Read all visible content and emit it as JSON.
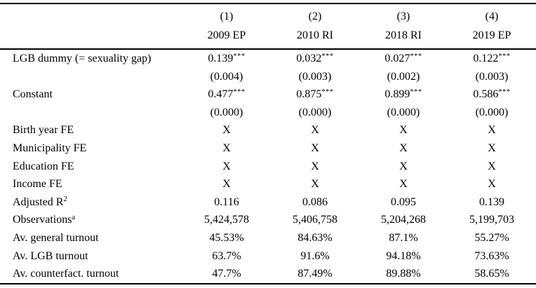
{
  "table": {
    "kind": "regression-results-table",
    "colors": {
      "text": "#000000",
      "background": "#ffffff",
      "rule": "#000000"
    },
    "columns": [
      {
        "num": "(1)",
        "label": "2009 EP"
      },
      {
        "num": "(2)",
        "label": "2010 RI"
      },
      {
        "num": "(3)",
        "label": "2018 RI"
      },
      {
        "num": "(4)",
        "label": "2019 EP"
      }
    ],
    "rows": [
      {
        "label": "LGB dummy (= sexuality gap)",
        "label_sup": "",
        "cells": [
          {
            "v": "0.139",
            "s": "***"
          },
          {
            "v": "0.032",
            "s": "***"
          },
          {
            "v": "0.027",
            "s": "***"
          },
          {
            "v": "0.122",
            "s": "***"
          }
        ]
      },
      {
        "label": "",
        "label_sup": "",
        "cells": [
          {
            "v": "(0.004)",
            "s": ""
          },
          {
            "v": "(0.003)",
            "s": ""
          },
          {
            "v": "(0.002)",
            "s": ""
          },
          {
            "v": "(0.003)",
            "s": ""
          }
        ]
      },
      {
        "label": "Constant",
        "label_sup": "",
        "cells": [
          {
            "v": "0.477",
            "s": "***"
          },
          {
            "v": "0.875",
            "s": "***"
          },
          {
            "v": "0.899",
            "s": "***"
          },
          {
            "v": "0.586",
            "s": "***"
          }
        ]
      },
      {
        "label": "",
        "label_sup": "",
        "cells": [
          {
            "v": "(0.000)",
            "s": ""
          },
          {
            "v": "(0.000)",
            "s": ""
          },
          {
            "v": "(0.000)",
            "s": ""
          },
          {
            "v": "(0.000)",
            "s": ""
          }
        ]
      },
      {
        "label": "Birth year FE",
        "label_sup": "",
        "cells": [
          {
            "v": "X",
            "s": ""
          },
          {
            "v": "X",
            "s": ""
          },
          {
            "v": "X",
            "s": ""
          },
          {
            "v": "X",
            "s": ""
          }
        ]
      },
      {
        "label": "Municipality FE",
        "label_sup": "",
        "cells": [
          {
            "v": "X",
            "s": ""
          },
          {
            "v": "X",
            "s": ""
          },
          {
            "v": "X",
            "s": ""
          },
          {
            "v": "X",
            "s": ""
          }
        ]
      },
      {
        "label": "Education FE",
        "label_sup": "",
        "cells": [
          {
            "v": "X",
            "s": ""
          },
          {
            "v": "X",
            "s": ""
          },
          {
            "v": "X",
            "s": ""
          },
          {
            "v": "X",
            "s": ""
          }
        ]
      },
      {
        "label": "Income FE",
        "label_sup": "",
        "cells": [
          {
            "v": "X",
            "s": ""
          },
          {
            "v": "X",
            "s": ""
          },
          {
            "v": "X",
            "s": ""
          },
          {
            "v": "X",
            "s": ""
          }
        ]
      },
      {
        "label": "Adjusted R",
        "label_sup": "2",
        "cells": [
          {
            "v": "0.116",
            "s": ""
          },
          {
            "v": "0.086",
            "s": ""
          },
          {
            "v": "0.095",
            "s": ""
          },
          {
            "v": "0.139",
            "s": ""
          }
        ]
      },
      {
        "label": "Observations",
        "label_sup": "a",
        "cells": [
          {
            "v": "5,424,578",
            "s": ""
          },
          {
            "v": "5,406,758",
            "s": ""
          },
          {
            "v": "5,204,268",
            "s": ""
          },
          {
            "v": "5,199,703",
            "s": ""
          }
        ]
      },
      {
        "label": "Av. general turnout",
        "label_sup": "",
        "cells": [
          {
            "v": "45.53%",
            "s": ""
          },
          {
            "v": "84.63%",
            "s": ""
          },
          {
            "v": "87.1%",
            "s": ""
          },
          {
            "v": "55.27%",
            "s": ""
          }
        ]
      },
      {
        "label": "Av. LGB turnout",
        "label_sup": "",
        "cells": [
          {
            "v": "63.7%",
            "s": ""
          },
          {
            "v": "91.6%",
            "s": ""
          },
          {
            "v": "94.18%",
            "s": ""
          },
          {
            "v": "73.63%",
            "s": ""
          }
        ]
      },
      {
        "label": "Av. counterfact. turnout",
        "label_sup": "",
        "cells": [
          {
            "v": "47.7%",
            "s": ""
          },
          {
            "v": "87.49%",
            "s": ""
          },
          {
            "v": "89.88%",
            "s": ""
          },
          {
            "v": "58.65%",
            "s": ""
          }
        ]
      }
    ]
  }
}
